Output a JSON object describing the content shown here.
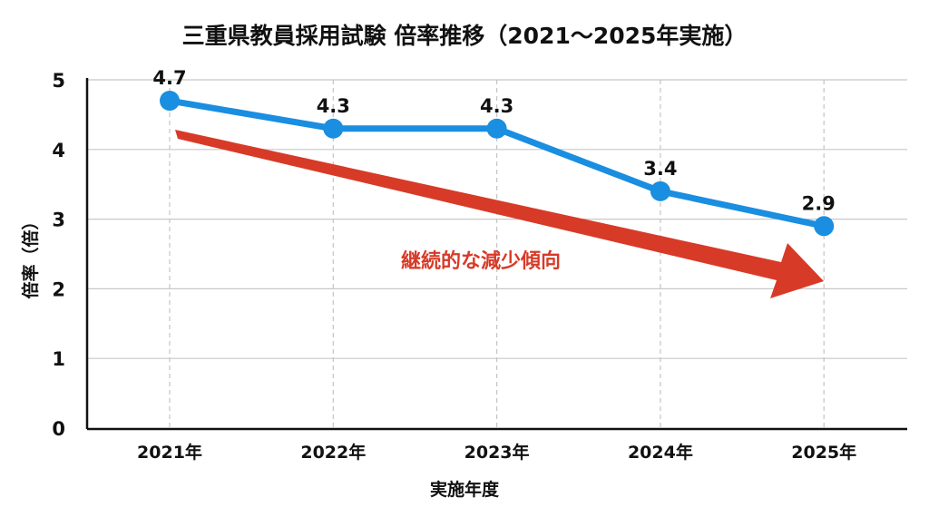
{
  "chart_data": {
    "type": "line",
    "title": "三重県教員採用試験 倍率推移（2021〜2025年実施）",
    "xlabel": "実施年度",
    "ylabel": "倍率（倍）",
    "categories": [
      "2021年",
      "2022年",
      "2023年",
      "2024年",
      "2025年"
    ],
    "values": [
      4.7,
      4.3,
      4.3,
      3.4,
      2.9
    ],
    "data_labels": [
      "4.7",
      "4.3",
      "4.3",
      "3.4",
      "2.9"
    ],
    "ylim": [
      0,
      5
    ],
    "yticks": [
      "0",
      "1",
      "2",
      "3",
      "4",
      "5"
    ],
    "grid": "horizontal solid, vertical dashed",
    "line_color": "#1a8ee0",
    "annotation": {
      "text": "継続的な減少傾向",
      "color": "#d83a28",
      "arrow": "downward trend arrow from 2021 to 2025"
    }
  }
}
